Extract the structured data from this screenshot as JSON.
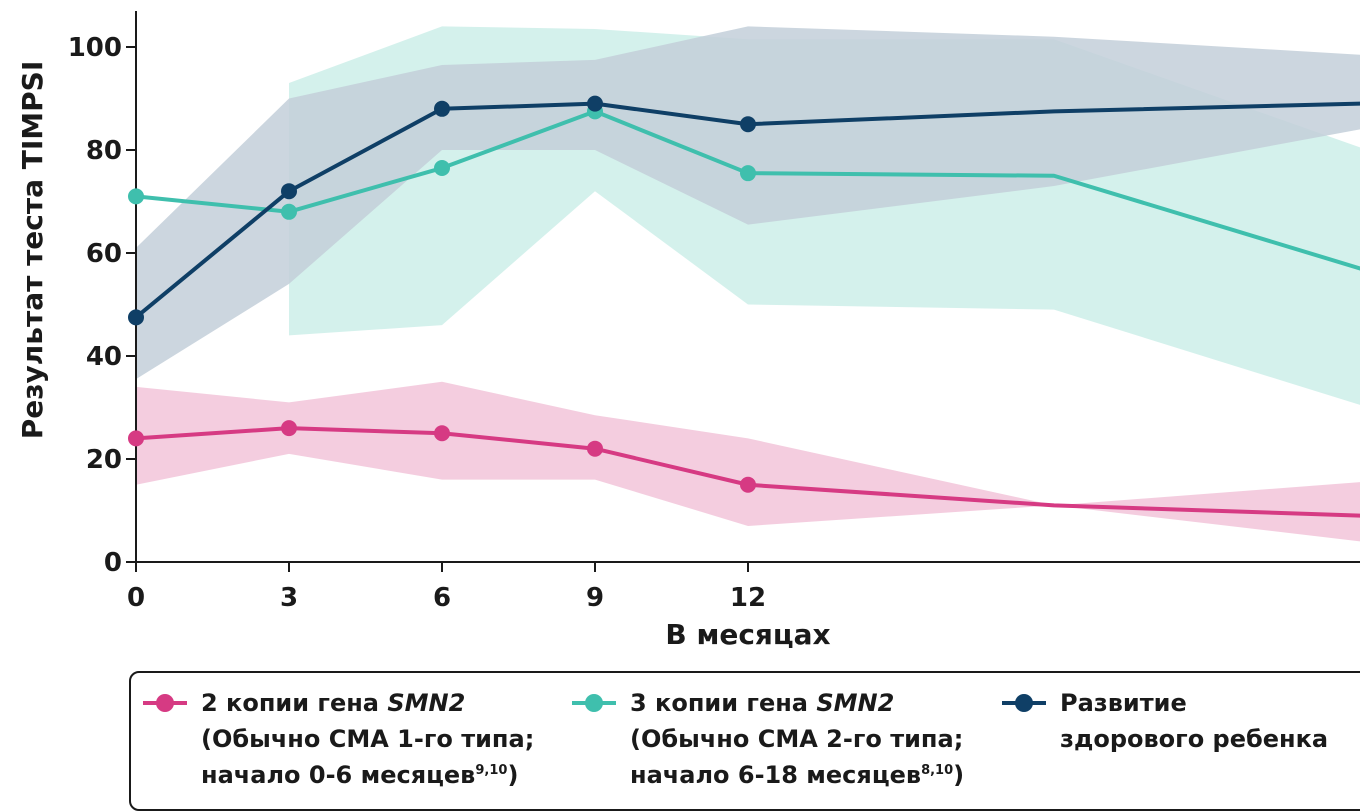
{
  "chart_data": {
    "type": "line",
    "xlabel": "В месяцах",
    "ylabel": "Результат теста TIMPSI",
    "xlim": [
      0,
      24
    ],
    "ylim": [
      0,
      100
    ],
    "x_ticks": [
      0,
      3,
      6,
      9,
      12
    ],
    "y_ticks": [
      0,
      20,
      40,
      60,
      80,
      100
    ],
    "grid": false,
    "legend_position": "bottom",
    "series": [
      {
        "key": "smn2_2",
        "color": "#d63a83",
        "band_color": "#f2c4d9",
        "x": [
          0,
          3,
          6,
          9,
          12,
          18,
          24
        ],
        "values": [
          24,
          26,
          25,
          22,
          15,
          11,
          9
        ],
        "markers": [
          true,
          true,
          true,
          true,
          true,
          false,
          false
        ],
        "band_x": [
          0,
          3,
          6,
          9,
          12,
          18,
          24
        ],
        "band_low": [
          15,
          21,
          16,
          16,
          7,
          11,
          4
        ],
        "band_high": [
          34,
          31,
          35,
          28.5,
          24,
          11,
          15.5
        ]
      },
      {
        "key": "smn2_3",
        "color": "#3fbfad",
        "band_color": "#cdeee9",
        "x": [
          0,
          3,
          6,
          9,
          12,
          18,
          24
        ],
        "values": [
          71,
          68,
          76.5,
          87.5,
          75.5,
          75,
          57
        ],
        "markers": [
          true,
          true,
          true,
          true,
          true,
          false,
          false
        ],
        "band_x": [
          3,
          6,
          9,
          12,
          18,
          24
        ],
        "band_low": [
          44,
          46,
          72,
          50,
          49,
          30.5
        ],
        "band_high": [
          93,
          104,
          103.5,
          101.5,
          101.5,
          80.5
        ]
      },
      {
        "key": "healthy",
        "color": "#0f3f66",
        "band_color": "#c3cfd9",
        "x": [
          0,
          3,
          6,
          9,
          12,
          18,
          24
        ],
        "values": [
          47.5,
          72,
          88,
          89,
          85,
          87.5,
          89
        ],
        "markers": [
          true,
          true,
          true,
          true,
          true,
          false,
          false
        ],
        "band_x": [
          0,
          3,
          6,
          9,
          12,
          18,
          24
        ],
        "band_low": [
          35.5,
          54,
          80,
          80,
          65.5,
          73,
          84
        ],
        "band_high": [
          61,
          90,
          96.5,
          97.5,
          104,
          102,
          98.5
        ]
      }
    ]
  },
  "legend": {
    "items": [
      {
        "color": "#d63a83",
        "line1": "2 копии гена ",
        "line1_em": "SMN2",
        "line2": "(Обычно СМА 1-го типа;",
        "line3": "начало 0-6 месяцев",
        "line3_sup": "9,10",
        "line3_tail": ")"
      },
      {
        "color": "#3fbfad",
        "line1": "3 копии гена ",
        "line1_em": "SMN2",
        "line2": "(Обычно СМА 2-го типа;",
        "line3": "начало 6-18 месяцев",
        "line3_sup": "8,10",
        "line3_tail": ")"
      },
      {
        "color": "#0f3f66",
        "line1": "Развитие",
        "line1_em": "",
        "line2": "здорового ребенка",
        "line3": "",
        "line3_sup": "",
        "line3_tail": ""
      }
    ]
  }
}
